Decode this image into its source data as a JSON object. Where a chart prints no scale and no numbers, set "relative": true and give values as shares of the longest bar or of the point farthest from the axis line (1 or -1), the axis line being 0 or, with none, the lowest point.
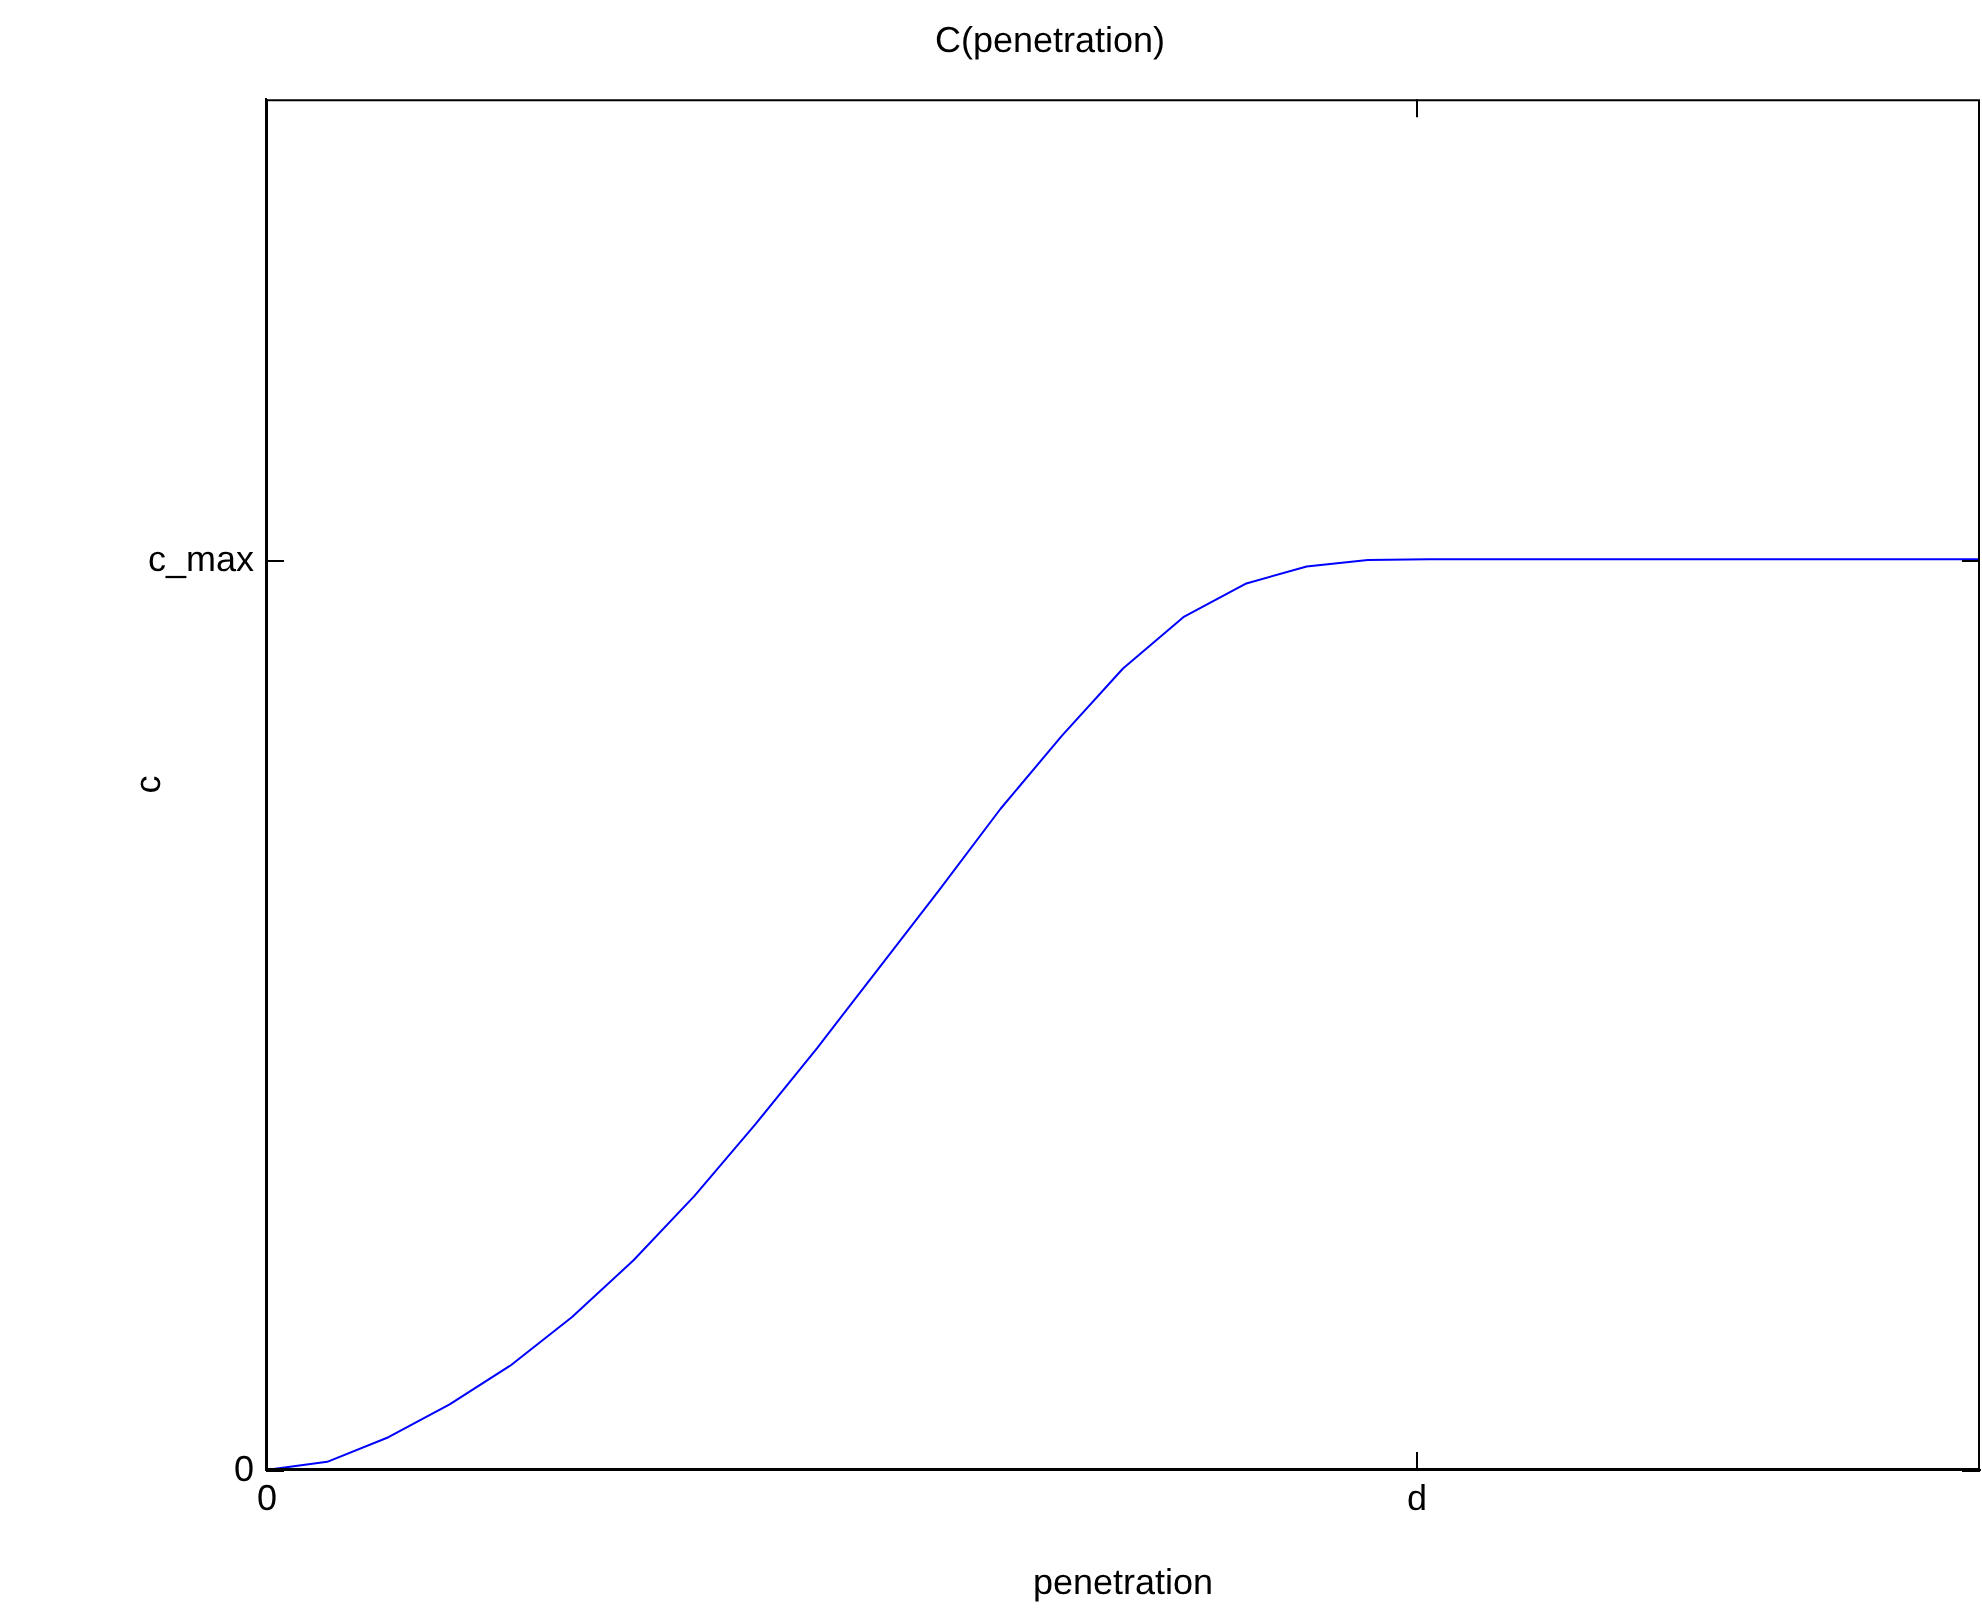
{
  "chart_data": {
    "type": "line",
    "title": "C(penetration)",
    "xlabel": "penetration",
    "ylabel": "c",
    "relative": true,
    "categories": [
      null,
      null,
      null,
      null,
      null,
      null,
      null,
      null,
      null,
      null,
      null,
      null,
      null,
      null,
      null,
      null,
      null,
      null,
      null,
      null,
      null,
      null,
      null,
      null,
      null,
      null,
      null,
      null,
      null
    ],
    "series": [
      {
        "color": "#0000ff",
        "values": [
          0,
          0.009,
          0.036,
          0.072,
          0.115,
          0.168,
          0.23,
          0.301,
          0.38,
          0.463,
          0.55,
          0.637,
          0.726,
          0.806,
          0.88,
          0.937,
          0.973,
          0.992,
          0.999,
          1,
          1,
          1,
          1,
          1,
          1,
          1,
          1,
          1,
          1
        ]
      }
    ],
    "annotations": [
      "0",
      "c_max",
      "0",
      "d"
    ],
    "grid": false,
    "legend": false
  }
}
